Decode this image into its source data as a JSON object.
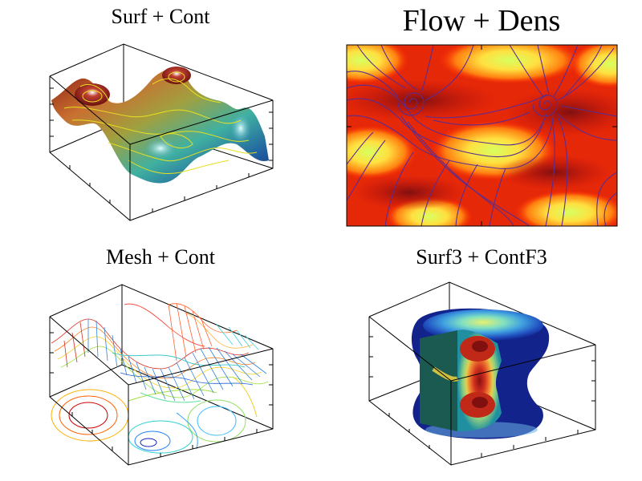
{
  "panels": [
    {
      "title": "Surf + Cont"
    },
    {
      "title": "Flow + Dens"
    },
    {
      "title": "Mesh + Cont"
    },
    {
      "title": "Surf3 + ContF3"
    }
  ],
  "chart_data": [
    {
      "type": "surface",
      "title": "Surf + Cont",
      "xlabel": "",
      "ylabel": "",
      "zlabel": "",
      "legend": "none",
      "grid": false
    },
    {
      "type": "heatmap",
      "title": "Flow + Dens",
      "overlay": "flow streamlines",
      "xlabel": "",
      "ylabel": "",
      "legend": "none",
      "grid": false
    },
    {
      "type": "surface",
      "title": "Mesh + Cont",
      "style": "wireframe mesh with contour lines at base",
      "xlabel": "",
      "ylabel": "",
      "legend": "none",
      "grid": false
    },
    {
      "type": "surface",
      "title": "Surf3 + ContF3",
      "style": "isosurface with cut-away filled contours",
      "xlabel": "",
      "ylabel": "",
      "legend": "none",
      "grid": false
    }
  ],
  "colors": {
    "flow_lines": "#5a2d91",
    "jet_dark_red": "#800000",
    "jet_red": "#ff2000",
    "jet_yellow": "#ffff40",
    "jet_cyan": "#40ffff",
    "jet_blue": "#0030c0",
    "navy": "#10208a"
  }
}
